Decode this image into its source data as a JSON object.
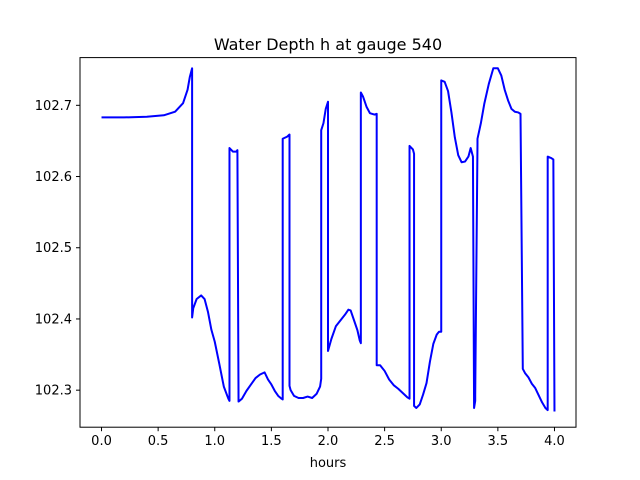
{
  "chart_data": {
    "type": "line",
    "title": "Water Depth h at gauge 540",
    "xlabel": "hours",
    "ylabel": "",
    "xlim": [
      -0.19,
      4.19
    ],
    "ylim": [
      102.248,
      102.767
    ],
    "xticks": [
      0.0,
      0.5,
      1.0,
      1.5,
      2.0,
      2.5,
      3.0,
      3.5,
      4.0
    ],
    "xtick_labels": [
      "0.0",
      "0.5",
      "1.0",
      "1.5",
      "2.0",
      "2.5",
      "3.0",
      "3.5",
      "4.0"
    ],
    "yticks": [
      102.3,
      102.4,
      102.5,
      102.6,
      102.7
    ],
    "ytick_labels": [
      "102.3",
      "102.4",
      "102.5",
      "102.6",
      "102.7"
    ],
    "grid": false,
    "legend": "none",
    "series": [
      {
        "color": "#0000ff",
        "x": [
          0.0,
          0.2,
          0.4,
          0.55,
          0.65,
          0.72,
          0.76,
          0.78,
          0.8,
          0.8,
          0.81,
          0.84,
          0.88,
          0.91,
          0.94,
          0.97,
          1.0,
          1.04,
          1.08,
          1.12,
          1.13,
          1.13,
          1.16,
          1.19,
          1.2,
          1.21,
          1.24,
          1.28,
          1.32,
          1.36,
          1.4,
          1.44,
          1.47,
          1.5,
          1.53,
          1.56,
          1.59,
          1.6,
          1.6,
          1.64,
          1.66,
          1.66,
          1.67,
          1.7,
          1.74,
          1.78,
          1.82,
          1.86,
          1.9,
          1.93,
          1.94,
          1.94,
          1.96,
          1.98,
          2.0,
          2.0,
          2.03,
          2.07,
          2.11,
          2.15,
          2.18,
          2.2,
          2.23,
          2.26,
          2.28,
          2.29,
          2.29,
          2.31,
          2.34,
          2.37,
          2.41,
          2.43,
          2.43,
          2.46,
          2.5,
          2.54,
          2.58,
          2.62,
          2.66,
          2.7,
          2.72,
          2.72,
          2.75,
          2.76,
          2.76,
          2.78,
          2.81,
          2.84,
          2.87,
          2.9,
          2.93,
          2.96,
          2.98,
          2.99,
          3.0,
          3.0,
          3.03,
          3.06,
          3.09,
          3.12,
          3.15,
          3.18,
          3.21,
          3.24,
          3.26,
          3.28,
          3.29,
          3.3,
          3.3,
          3.32,
          3.32,
          3.35,
          3.38,
          3.42,
          3.46,
          3.5,
          3.53,
          3.56,
          3.59,
          3.62,
          3.65,
          3.68,
          3.7,
          3.72,
          3.72,
          3.74,
          3.77,
          3.8,
          3.83,
          3.86,
          3.89,
          3.92,
          3.94,
          3.94,
          3.97,
          3.99,
          4.0
        ],
        "y": [
          102.683,
          102.683,
          102.684,
          102.686,
          102.691,
          102.703,
          102.722,
          102.74,
          102.752,
          102.402,
          102.415,
          102.428,
          102.433,
          102.428,
          102.41,
          102.385,
          102.368,
          102.337,
          102.305,
          102.288,
          102.285,
          102.64,
          102.635,
          102.635,
          102.637,
          102.284,
          102.288,
          102.299,
          102.308,
          102.317,
          102.322,
          102.325,
          102.315,
          102.308,
          102.299,
          102.292,
          102.288,
          102.287,
          102.653,
          102.656,
          102.659,
          102.306,
          102.3,
          102.292,
          102.289,
          102.289,
          102.291,
          102.289,
          102.295,
          102.305,
          102.316,
          102.665,
          102.675,
          102.695,
          102.705,
          102.355,
          102.372,
          102.39,
          102.398,
          102.406,
          102.413,
          102.412,
          102.398,
          102.384,
          102.37,
          102.366,
          102.718,
          102.712,
          102.698,
          102.689,
          102.687,
          102.688,
          102.335,
          102.335,
          102.327,
          102.315,
          102.307,
          102.302,
          102.296,
          102.29,
          102.288,
          102.643,
          102.638,
          102.632,
          102.278,
          102.275,
          102.28,
          102.294,
          102.31,
          102.34,
          102.365,
          102.378,
          102.382,
          102.382,
          102.382,
          102.735,
          102.733,
          102.72,
          102.69,
          102.655,
          102.63,
          102.62,
          102.621,
          102.628,
          102.64,
          102.628,
          102.275,
          102.285,
          102.293,
          102.645,
          102.653,
          102.675,
          102.702,
          102.73,
          102.752,
          102.752,
          102.742,
          102.722,
          102.707,
          102.695,
          102.691,
          102.69,
          102.688,
          102.332,
          102.33,
          102.324,
          102.318,
          102.309,
          102.303,
          102.293,
          102.283,
          102.275,
          102.272,
          102.628,
          102.626,
          102.624,
          102.27
        ]
      }
    ]
  }
}
